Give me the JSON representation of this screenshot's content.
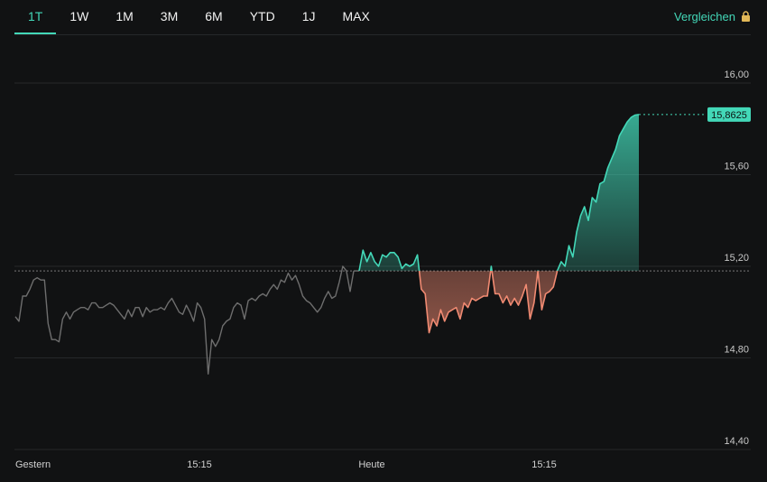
{
  "tabs": [
    {
      "label": "1T",
      "active": true
    },
    {
      "label": "1W",
      "active": false
    },
    {
      "label": "1M",
      "active": false
    },
    {
      "label": "3M",
      "active": false
    },
    {
      "label": "6M",
      "active": false
    },
    {
      "label": "YTD",
      "active": false
    },
    {
      "label": "1J",
      "active": false
    },
    {
      "label": "MAX",
      "active": false
    }
  ],
  "compare": {
    "label": "Vergleichen",
    "icon": "lock-icon"
  },
  "colors": {
    "accent": "#43d8b8",
    "up": "#43d8b8",
    "down": "#f08a72",
    "previous_day": "#6e6e6e",
    "grid": "#26282a",
    "background": "#111213"
  },
  "chart_data": {
    "type": "line",
    "title": "",
    "xlabel": "",
    "ylabel": "",
    "ylim": [
      14.4,
      16.1
    ],
    "y_ticks": [
      "16,00",
      "15,60",
      "15,20",
      "14,80",
      "14,40"
    ],
    "y_tick_values": [
      16.0,
      15.6,
      15.2,
      14.8,
      14.4
    ],
    "x_tick_labels": [
      "Gestern",
      "15:15",
      "Heute",
      "15:15"
    ],
    "previous_close": 15.18,
    "last_price": 15.8625,
    "last_price_label": "15,8625",
    "grid": true,
    "series": [
      {
        "role": "previous-day",
        "values": [
          14.98,
          14.96,
          15.07,
          15.07,
          15.1,
          15.14,
          15.15,
          15.14,
          15.14,
          14.95,
          14.88,
          14.88,
          14.87,
          14.97,
          15.0,
          14.97,
          15.0,
          15.01,
          15.02,
          15.02,
          15.01,
          15.04,
          15.04,
          15.02,
          15.02,
          15.03,
          15.04,
          15.03,
          15.01,
          14.99,
          14.97,
          15.01,
          14.98,
          15.02,
          15.02,
          14.98,
          15.02,
          15.0,
          15.01,
          15.01,
          15.02,
          15.01,
          15.04,
          15.06,
          15.03,
          15.0,
          14.99,
          15.03,
          15.0,
          14.96,
          15.04,
          15.02,
          14.97,
          14.73,
          14.88,
          14.85,
          14.88,
          14.94,
          14.96,
          14.97,
          15.02,
          15.04,
          15.03,
          14.97,
          15.05,
          15.06,
          15.05,
          15.07,
          15.08,
          15.07,
          15.1,
          15.12,
          15.1,
          15.14,
          15.13,
          15.17,
          15.14,
          15.16,
          15.12,
          15.07,
          15.05,
          15.04,
          15.02,
          15.0,
          15.02,
          15.06,
          15.09,
          15.06,
          15.07,
          15.13,
          15.2,
          15.18,
          15.09,
          15.18
        ]
      },
      {
        "role": "today",
        "values": [
          15.18,
          15.27,
          15.22,
          15.26,
          15.22,
          15.2,
          15.25,
          15.24,
          15.26,
          15.26,
          15.24,
          15.19,
          15.21,
          15.2,
          15.21,
          15.25,
          15.1,
          15.08,
          14.91,
          14.97,
          14.94,
          15.01,
          14.96,
          15.0,
          15.01,
          15.02,
          14.97,
          15.04,
          15.02,
          15.06,
          15.05,
          15.06,
          15.07,
          15.07,
          15.2,
          15.08,
          15.08,
          15.04,
          15.07,
          15.03,
          15.06,
          15.03,
          15.07,
          15.12,
          14.97,
          15.04,
          15.18,
          15.01,
          15.08,
          15.09,
          15.11,
          15.18,
          15.22,
          15.2,
          15.29,
          15.24,
          15.35,
          15.42,
          15.46,
          15.4,
          15.5,
          15.48,
          15.56,
          15.57,
          15.63,
          15.67,
          15.71,
          15.77,
          15.8,
          15.83,
          15.85,
          15.86,
          15.8625
        ]
      }
    ]
  }
}
